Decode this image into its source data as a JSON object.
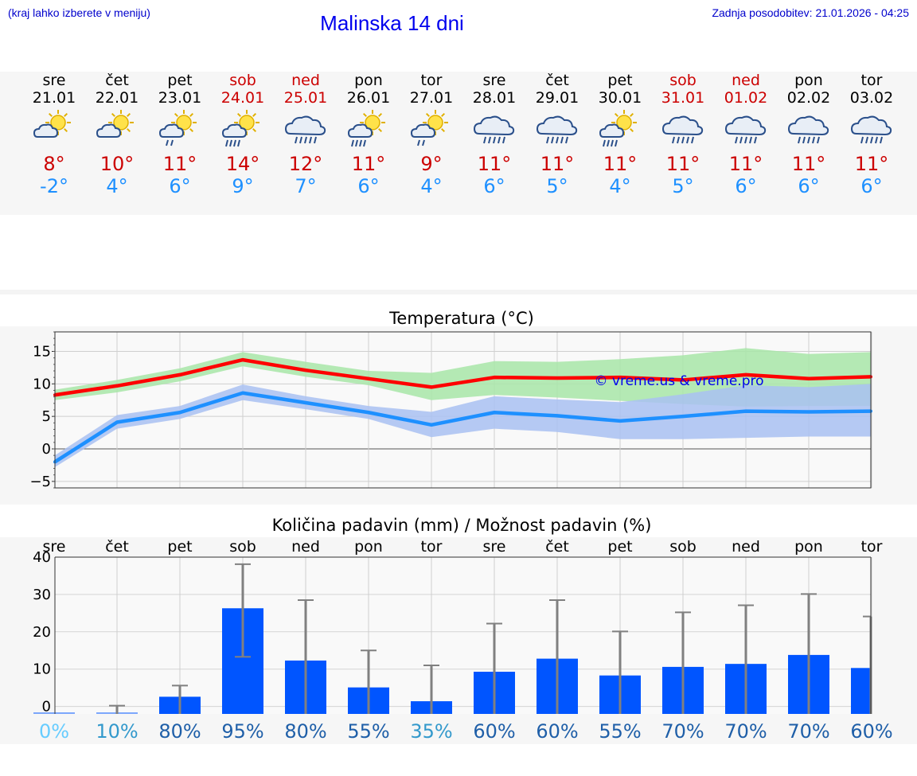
{
  "header": {
    "hint": "(kraj lahko izberete v meniju)",
    "title": "Malinska 14 dni",
    "updated": "Zadnja posodobitev: 21.01.2026 - 04:25"
  },
  "days": [
    {
      "name": "sre",
      "date": "21.01",
      "weekend": false,
      "icon": "sun-cloud",
      "tmax": "8°",
      "tmin": "-2°"
    },
    {
      "name": "čet",
      "date": "22.01",
      "weekend": false,
      "icon": "sun-cloud",
      "tmax": "10°",
      "tmin": "4°"
    },
    {
      "name": "pet",
      "date": "23.01",
      "weekend": false,
      "icon": "sun-cloud-rain",
      "tmax": "11°",
      "tmin": "6°"
    },
    {
      "name": "sob",
      "date": "24.01",
      "weekend": true,
      "icon": "sun-cloud-heavy-rain",
      "tmax": "14°",
      "tmin": "9°"
    },
    {
      "name": "ned",
      "date": "25.01",
      "weekend": true,
      "icon": "cloud-rain",
      "tmax": "12°",
      "tmin": "7°"
    },
    {
      "name": "pon",
      "date": "26.01",
      "weekend": false,
      "icon": "sun-cloud-heavy-rain",
      "tmax": "11°",
      "tmin": "6°"
    },
    {
      "name": "tor",
      "date": "27.01",
      "weekend": false,
      "icon": "sun-cloud-rain",
      "tmax": "9°",
      "tmin": "4°"
    },
    {
      "name": "sre",
      "date": "28.01",
      "weekend": false,
      "icon": "cloud-rain",
      "tmax": "11°",
      "tmin": "6°"
    },
    {
      "name": "čet",
      "date": "29.01",
      "weekend": false,
      "icon": "cloud-rain",
      "tmax": "11°",
      "tmin": "5°"
    },
    {
      "name": "pet",
      "date": "30.01",
      "weekend": false,
      "icon": "sun-cloud-heavy-rain",
      "tmax": "11°",
      "tmin": "4°"
    },
    {
      "name": "sob",
      "date": "31.01",
      "weekend": true,
      "icon": "cloud-rain",
      "tmax": "11°",
      "tmin": "5°"
    },
    {
      "name": "ned",
      "date": "01.02",
      "weekend": true,
      "icon": "cloud-rain",
      "tmax": "11°",
      "tmin": "6°"
    },
    {
      "name": "pon",
      "date": "02.02",
      "weekend": false,
      "icon": "cloud-rain",
      "tmax": "11°",
      "tmin": "6°"
    },
    {
      "name": "tor",
      "date": "03.02",
      "weekend": false,
      "icon": "cloud-rain",
      "tmax": "11°",
      "tmin": "6°"
    }
  ],
  "colors": {
    "max": "#ff0000",
    "min": "#1e90ff",
    "max_band": "#a8e6a8",
    "min_band": "#a9c1f2",
    "bar": "#0055ff",
    "whisker": "#808080"
  },
  "chart_data": [
    {
      "type": "line",
      "title": "Temperatura (°C)",
      "watermark": "© vreme.us & vreme.pro",
      "ylim": [
        -6,
        18
      ],
      "yticks": [
        15,
        10,
        5,
        0,
        -5
      ],
      "ytick_labels": [
        "15",
        "10",
        "5",
        "0",
        "−5"
      ],
      "x": [
        0,
        1,
        2,
        3,
        4,
        5,
        6,
        7,
        8,
        9,
        10,
        11,
        12,
        13
      ],
      "series": [
        {
          "name": "max",
          "values": [
            8.3,
            9.7,
            11.4,
            13.7,
            12.1,
            10.8,
            9.5,
            11.0,
            10.9,
            11.0,
            10.6,
            11.4,
            10.8,
            11.1
          ],
          "band_low": [
            7.5,
            8.7,
            10.4,
            12.7,
            11.1,
            9.8,
            7.5,
            8.3,
            7.9,
            7.4,
            6.9,
            6.5,
            6.6,
            6.6
          ],
          "band_high": [
            9.1,
            10.6,
            12.4,
            14.9,
            13.4,
            12.0,
            11.7,
            13.5,
            13.4,
            13.8,
            14.4,
            15.5,
            14.6,
            14.9
          ]
        },
        {
          "name": "min",
          "values": [
            -2.0,
            4.1,
            5.6,
            8.6,
            7.1,
            5.6,
            3.7,
            5.6,
            5.1,
            4.3,
            5.0,
            5.8,
            5.7,
            5.8
          ],
          "band_low": [
            -2.8,
            3.1,
            4.6,
            7.5,
            6.1,
            4.6,
            1.8,
            3.1,
            2.6,
            1.5,
            1.5,
            1.7,
            1.9,
            1.9
          ],
          "band_high": [
            -1.0,
            5.2,
            6.6,
            9.9,
            8.1,
            6.6,
            5.7,
            8.1,
            7.6,
            7.2,
            8.4,
            9.8,
            9.5,
            10.0
          ]
        }
      ]
    },
    {
      "type": "bar",
      "title": "Količina padavin (mm) / Možnost padavin (%)",
      "categories": [
        "sre",
        "čet",
        "pet",
        "sob",
        "ned",
        "pon",
        "tor",
        "sre",
        "čet",
        "pet",
        "sob",
        "ned",
        "pon",
        "tor"
      ],
      "ylim": [
        -2,
        40
      ],
      "yticks": [
        40,
        30,
        20,
        10,
        0
      ],
      "values": [
        0,
        0,
        2.6,
        26.3,
        12.3,
        5.1,
        1.4,
        9.3,
        12.8,
        8.3,
        10.6,
        11.4,
        13.8,
        10.3
      ],
      "err_high": [
        0,
        0.2,
        5.6,
        38.1,
        28.5,
        15,
        11,
        22.2,
        28.5,
        20.1,
        25.2,
        27.1,
        30.1,
        24.1
      ],
      "err_low": [
        0,
        0,
        0,
        13.3,
        0,
        0,
        0,
        0,
        0,
        0,
        0,
        0,
        0,
        0
      ],
      "probability": [
        "0%",
        "10%",
        "80%",
        "95%",
        "80%",
        "55%",
        "35%",
        "60%",
        "60%",
        "55%",
        "70%",
        "70%",
        "70%",
        "60%"
      ],
      "probability_colors": [
        "#66ccff",
        "#3399cc",
        "#1f5fa8",
        "#1f5fa8",
        "#1f5fa8",
        "#1f5fa8",
        "#3399cc",
        "#1f5fa8",
        "#1f5fa8",
        "#1f5fa8",
        "#1f5fa8",
        "#1f5fa8",
        "#1f5fa8",
        "#1f5fa8"
      ]
    }
  ]
}
